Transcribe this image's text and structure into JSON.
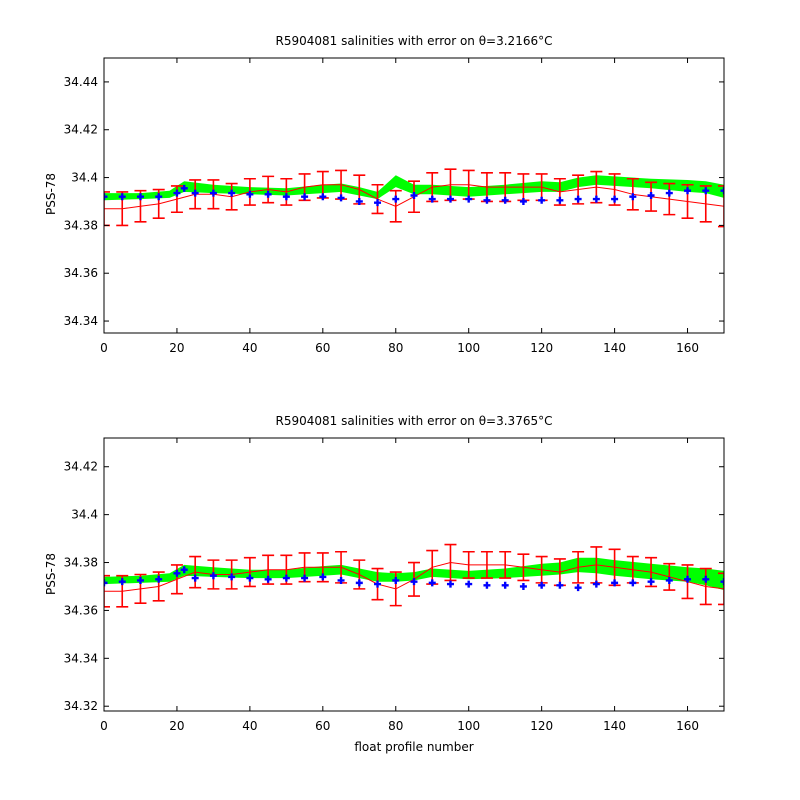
{
  "chart_data": [
    {
      "type": "line",
      "title": "R5904081 salinities with error on θ=3.2166°C",
      "xlabel": "",
      "ylabel": "PSS-78",
      "xlim": [
        0,
        170
      ],
      "ylim": [
        34.335,
        34.45
      ],
      "xticks": [
        "0",
        "20",
        "40",
        "60",
        "80",
        "100",
        "120",
        "140",
        "160"
      ],
      "yticks": [
        "34.34",
        "34.36",
        "34.38",
        "34.4",
        "34.42",
        "34.44"
      ],
      "grid": false,
      "series": [
        {
          "role": "band",
          "color": "#00ff00",
          "x": [
            0,
            10,
            18,
            22,
            30,
            40,
            50,
            60,
            65,
            70,
            75,
            80,
            85,
            90,
            100,
            110,
            120,
            125,
            130,
            135,
            140,
            150,
            160,
            165,
            170
          ],
          "upper": [
            34.3935,
            34.3935,
            34.3945,
            34.3985,
            34.397,
            34.396,
            34.3955,
            34.397,
            34.3975,
            34.396,
            34.394,
            34.401,
            34.397,
            34.397,
            34.396,
            34.397,
            34.3985,
            34.398,
            34.4,
            34.401,
            34.4005,
            34.3995,
            34.399,
            34.3985,
            34.397
          ],
          "lower": [
            34.3905,
            34.391,
            34.3915,
            34.394,
            34.3935,
            34.393,
            34.3925,
            34.3935,
            34.394,
            34.3925,
            34.391,
            34.396,
            34.393,
            34.393,
            34.392,
            34.393,
            34.394,
            34.394,
            34.396,
            34.397,
            34.3965,
            34.3955,
            34.394,
            34.3935,
            34.3915
          ]
        },
        {
          "role": "errorbars",
          "color": "#ff0000",
          "x": [
            0,
            5,
            10,
            15,
            20,
            25,
            30,
            35,
            40,
            45,
            50,
            55,
            60,
            65,
            70,
            75,
            80,
            85,
            90,
            95,
            100,
            105,
            110,
            115,
            120,
            125,
            130,
            135,
            140,
            145,
            150,
            155,
            160,
            165,
            170
          ],
          "y": [
            34.387,
            34.387,
            34.388,
            34.389,
            34.391,
            34.393,
            34.393,
            34.392,
            34.394,
            34.395,
            34.394,
            34.396,
            34.397,
            34.397,
            34.395,
            34.391,
            34.388,
            34.392,
            34.396,
            34.397,
            34.397,
            34.396,
            34.396,
            34.396,
            34.396,
            34.394,
            34.395,
            34.396,
            34.395,
            34.393,
            34.392,
            34.391,
            34.39,
            34.389,
            34.388
          ],
          "err": [
            0.007,
            0.007,
            0.0065,
            0.006,
            0.0055,
            0.006,
            0.006,
            0.0055,
            0.0055,
            0.0055,
            0.0055,
            0.0055,
            0.0055,
            0.006,
            0.006,
            0.006,
            0.0065,
            0.0065,
            0.006,
            0.0065,
            0.006,
            0.006,
            0.006,
            0.0055,
            0.0055,
            0.0055,
            0.006,
            0.0065,
            0.0065,
            0.0065,
            0.006,
            0.0065,
            0.007,
            0.0075,
            0.0085
          ]
        },
        {
          "role": "points",
          "color": "#0000ff",
          "x": [
            0,
            5,
            10,
            15,
            20,
            22,
            25,
            30,
            35,
            40,
            45,
            50,
            55,
            60,
            65,
            70,
            75,
            80,
            85,
            90,
            95,
            100,
            105,
            110,
            115,
            120,
            125,
            130,
            135,
            140,
            145,
            150,
            155,
            160,
            165,
            170
          ],
          "y": [
            34.392,
            34.392,
            34.392,
            34.392,
            34.3935,
            34.3955,
            34.3935,
            34.3935,
            34.3935,
            34.393,
            34.393,
            34.392,
            34.392,
            34.392,
            34.3915,
            34.39,
            34.3895,
            34.391,
            34.3925,
            34.391,
            34.391,
            34.391,
            34.3905,
            34.3905,
            34.39,
            34.3905,
            34.3905,
            34.391,
            34.391,
            34.391,
            34.392,
            34.3925,
            34.3935,
            34.3945,
            34.3945,
            34.3945
          ]
        }
      ]
    },
    {
      "type": "line",
      "title": "R5904081 salinities with error on θ=3.3765°C",
      "xlabel": "float profile number",
      "ylabel": "PSS-78",
      "xlim": [
        0,
        170
      ],
      "ylim": [
        34.318,
        34.432
      ],
      "xticks": [
        "0",
        "20",
        "40",
        "60",
        "80",
        "100",
        "120",
        "140",
        "160"
      ],
      "yticks": [
        "34.32",
        "34.34",
        "34.36",
        "34.38",
        "34.4",
        "34.42"
      ],
      "grid": false,
      "series": [
        {
          "role": "band",
          "color": "#00ff00",
          "x": [
            0,
            10,
            18,
            22,
            30,
            40,
            50,
            60,
            65,
            70,
            75,
            80,
            85,
            90,
            100,
            110,
            120,
            125,
            130,
            135,
            140,
            150,
            160,
            165,
            170
          ],
          "upper": [
            34.374,
            34.3745,
            34.3755,
            34.379,
            34.378,
            34.377,
            34.377,
            34.3785,
            34.379,
            34.3775,
            34.376,
            34.3755,
            34.376,
            34.3775,
            34.3765,
            34.3775,
            34.3795,
            34.38,
            34.382,
            34.382,
            34.381,
            34.3795,
            34.378,
            34.3775,
            34.3765
          ],
          "lower": [
            34.371,
            34.3715,
            34.372,
            34.3745,
            34.374,
            34.3735,
            34.3735,
            34.3745,
            34.375,
            34.3735,
            34.372,
            34.372,
            34.3725,
            34.374,
            34.373,
            34.3735,
            34.3745,
            34.375,
            34.376,
            34.3755,
            34.3745,
            34.373,
            34.372,
            34.3705,
            34.3685
          ]
        },
        {
          "role": "errorbars",
          "color": "#ff0000",
          "x": [
            0,
            5,
            10,
            15,
            20,
            25,
            30,
            35,
            40,
            45,
            50,
            55,
            60,
            65,
            70,
            75,
            80,
            85,
            90,
            95,
            100,
            105,
            110,
            115,
            120,
            125,
            130,
            135,
            140,
            145,
            150,
            155,
            160,
            165,
            170
          ],
          "y": [
            34.368,
            34.368,
            34.369,
            34.37,
            34.373,
            34.376,
            34.375,
            34.375,
            34.376,
            34.377,
            34.377,
            34.378,
            34.378,
            34.378,
            34.375,
            34.371,
            34.369,
            34.373,
            34.378,
            34.38,
            34.379,
            34.379,
            34.379,
            34.378,
            34.377,
            34.376,
            34.378,
            34.379,
            34.378,
            34.377,
            34.376,
            34.374,
            34.372,
            34.37,
            34.369
          ],
          "err": [
            0.0065,
            0.0065,
            0.006,
            0.006,
            0.006,
            0.0065,
            0.006,
            0.006,
            0.006,
            0.006,
            0.006,
            0.006,
            0.006,
            0.0065,
            0.006,
            0.0065,
            0.007,
            0.007,
            0.007,
            0.0075,
            0.0055,
            0.0055,
            0.0055,
            0.0055,
            0.0055,
            0.0055,
            0.0065,
            0.0075,
            0.0075,
            0.0055,
            0.006,
            0.0055,
            0.007,
            0.0075,
            0.0065
          ]
        },
        {
          "role": "points",
          "color": "#0000ff",
          "x": [
            0,
            5,
            10,
            15,
            20,
            22,
            25,
            30,
            35,
            40,
            45,
            50,
            55,
            60,
            65,
            70,
            75,
            80,
            85,
            90,
            95,
            100,
            105,
            110,
            115,
            120,
            125,
            130,
            135,
            140,
            145,
            150,
            155,
            160,
            165,
            170
          ],
          "y": [
            34.3715,
            34.372,
            34.3725,
            34.373,
            34.3755,
            34.377,
            34.3735,
            34.3745,
            34.374,
            34.3735,
            34.373,
            34.3735,
            34.3735,
            34.374,
            34.3725,
            34.3715,
            34.371,
            34.3725,
            34.372,
            34.3715,
            34.371,
            34.371,
            34.3705,
            34.3705,
            34.37,
            34.3705,
            34.3705,
            34.3695,
            34.371,
            34.3715,
            34.3715,
            34.372,
            34.3725,
            34.373,
            34.373,
            34.372
          ]
        }
      ]
    }
  ]
}
